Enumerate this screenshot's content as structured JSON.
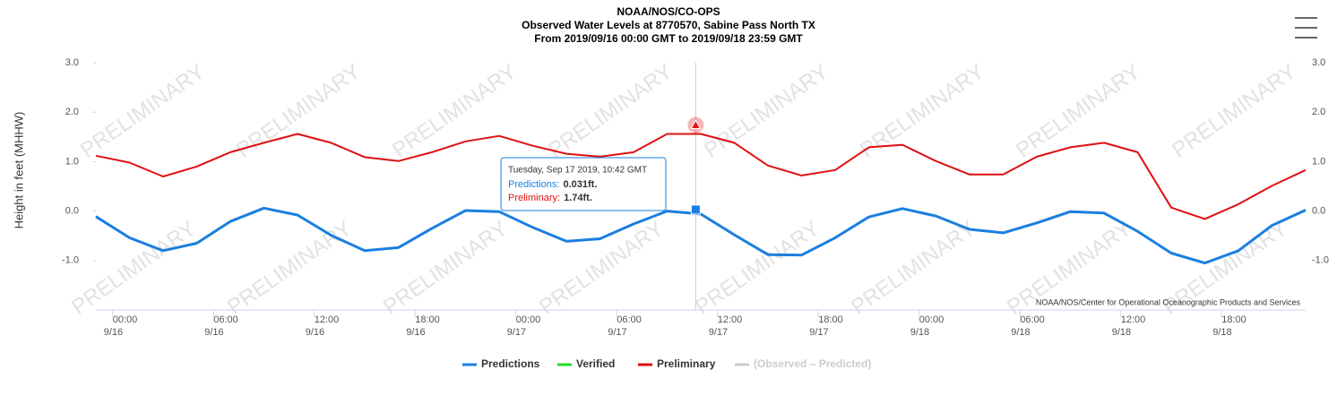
{
  "chart_data": {
    "type": "line",
    "title": [
      "NOAA/NOS/CO-OPS",
      "Observed Water Levels at 8770570, Sabine Pass North TX",
      "From 2019/09/16 00:00 GMT to 2019/09/18 23:59 GMT"
    ],
    "y_label": "Height in feet (MHHW)",
    "credits": "NOAA/NOS/Center for Operational Oceanographic Products and Services",
    "watermark": "PRELIMINARY",
    "x": [
      "9/15 23:00",
      "9/16 01:00",
      "9/16 03:00",
      "9/16 05:00",
      "9/16 07:00",
      "9/16 09:00",
      "9/16 11:00",
      "9/16 13:00",
      "9/16 15:00",
      "9/16 17:00",
      "9/16 19:00",
      "9/16 21:00",
      "9/16 23:00",
      "9/17 01:00",
      "9/17 03:00",
      "9/17 05:00",
      "9/17 07:00",
      "9/17 09:00",
      "9/17 11:00",
      "9/17 13:00",
      "9/17 15:00",
      "9/17 17:00",
      "9/17 19:00",
      "9/17 21:00",
      "9/17 23:00",
      "9/18 01:00",
      "9/18 03:00",
      "9/18 05:00",
      "9/18 07:00",
      "9/18 09:00",
      "9/18 11:00",
      "9/18 13:00",
      "9/18 15:00",
      "9/18 17:00",
      "9/18 19:00",
      "9/18 21:00",
      "9/18 23:00"
    ],
    "xlim": [
      "9/15 23:00",
      "9/18 23:00"
    ],
    "xticks": [
      {
        "value": "9/16 00:00",
        "time": "00:00",
        "date": "9/16"
      },
      {
        "value": "9/16 06:00",
        "time": "06:00",
        "date": "9/16"
      },
      {
        "value": "9/16 12:00",
        "time": "12:00",
        "date": "9/16"
      },
      {
        "value": "9/16 18:00",
        "time": "18:00",
        "date": "9/16"
      },
      {
        "value": "9/17 00:00",
        "time": "00:00",
        "date": "9/17"
      },
      {
        "value": "9/17 06:00",
        "time": "06:00",
        "date": "9/17"
      },
      {
        "value": "9/17 12:00",
        "time": "12:00",
        "date": "9/17"
      },
      {
        "value": "9/17 18:00",
        "time": "18:00",
        "date": "9/17"
      },
      {
        "value": "9/18 00:00",
        "time": "00:00",
        "date": "9/18"
      },
      {
        "value": "9/18 06:00",
        "time": "06:00",
        "date": "9/18"
      },
      {
        "value": "9/18 12:00",
        "time": "12:00",
        "date": "9/18"
      },
      {
        "value": "9/18 18:00",
        "time": "18:00",
        "date": "9/18"
      }
    ],
    "ylim": [
      -2,
      3
    ],
    "yticks": [
      {
        "value": -1,
        "label": "-1.0"
      },
      {
        "value": 0,
        "label": "0.0"
      },
      {
        "value": 1,
        "label": "1.0"
      },
      {
        "value": 2,
        "label": "2.0"
      },
      {
        "value": 3,
        "label": "3.0"
      }
    ],
    "series": [
      {
        "name": "Predictions",
        "color": "#1a7fe0",
        "values": [
          -0.11,
          -0.54,
          -0.8,
          -0.65,
          -0.21,
          0.06,
          -0.08,
          -0.49,
          -0.8,
          -0.74,
          -0.35,
          0.01,
          -0.01,
          -0.33,
          -0.61,
          -0.56,
          -0.26,
          0.0,
          -0.06,
          -0.48,
          -0.88,
          -0.89,
          -0.54,
          -0.12,
          0.05,
          -0.1,
          -0.37,
          -0.44,
          -0.24,
          -0.01,
          -0.04,
          -0.41,
          -0.85,
          -1.05,
          -0.8,
          -0.29,
          0.02
        ]
      },
      {
        "name": "Verified",
        "color": "#22dd22",
        "values": [
          null,
          null,
          null,
          null,
          null,
          null,
          null,
          null,
          null,
          null,
          null,
          null,
          null,
          null,
          null,
          null,
          null,
          null,
          null,
          null,
          null,
          null,
          null,
          null,
          null,
          null,
          null,
          null,
          null,
          null,
          null,
          null,
          null,
          null,
          null,
          null,
          null
        ]
      },
      {
        "name": "Preliminary",
        "color": "#e01010",
        "values": [
          1.12,
          0.98,
          0.7,
          0.9,
          1.19,
          1.38,
          1.56,
          1.38,
          1.09,
          1.01,
          1.19,
          1.41,
          1.52,
          1.32,
          1.16,
          1.1,
          1.19,
          1.56,
          1.56,
          1.38,
          0.92,
          0.72,
          0.83,
          1.29,
          1.34,
          1.01,
          0.74,
          0.74,
          1.1,
          1.29,
          1.38,
          1.19,
          0.07,
          -0.16,
          0.14,
          0.51,
          0.83
        ]
      },
      {
        "name": "(Observed – Predicted)",
        "color": "#cccccc",
        "hidden": true,
        "values": [
          null,
          null,
          null,
          null,
          null,
          null,
          null,
          null,
          null,
          null,
          null,
          null,
          null,
          null,
          null,
          null,
          null,
          null,
          null,
          null,
          null,
          null,
          null,
          null,
          null,
          null,
          null,
          null,
          null,
          null,
          null,
          null,
          null,
          null,
          null,
          null,
          null
        ]
      }
    ],
    "tooltip": {
      "time": "Tuesday, Sep 17 2019, 10:42 GMT",
      "x": "9/17 10:42",
      "rows": [
        {
          "label": "Predictions:",
          "value": 0.031,
          "value_label": "0.031ft.",
          "color": "#1a7fe0"
        },
        {
          "label": "Preliminary:",
          "value": 1.74,
          "value_label": "1.74ft.",
          "color": "#e01010"
        }
      ]
    }
  }
}
